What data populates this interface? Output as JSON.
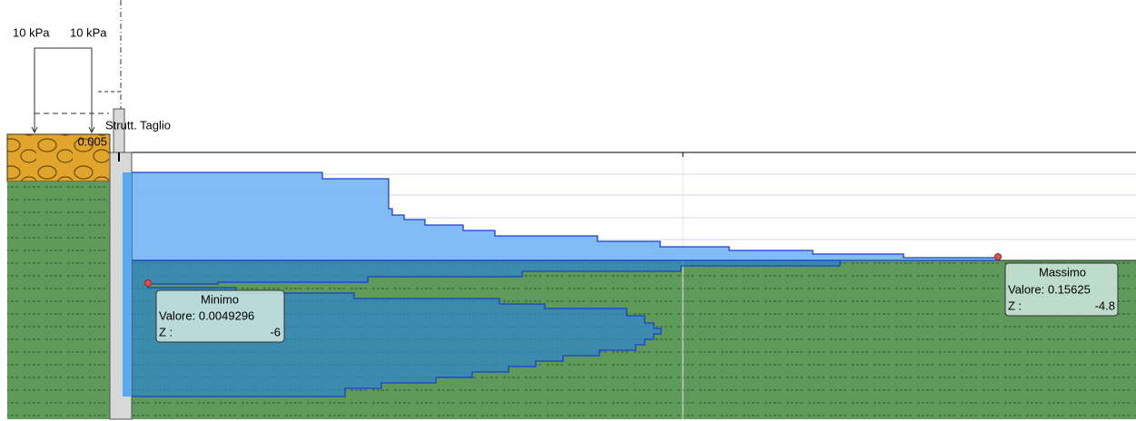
{
  "loads": [
    "10 kPa",
    "10 kPa"
  ],
  "diagram": {
    "title": "Strutt. Taglio",
    "top_value": "0.005"
  },
  "minimum": {
    "title": "Minimo",
    "value": "Valore: 0.0049296",
    "z_label": "Z :",
    "z": "-6"
  },
  "maximum": {
    "title": "Massimo",
    "value": "Valore: 0.15625",
    "z_label": "Z :",
    "z": "-4.8"
  }
}
